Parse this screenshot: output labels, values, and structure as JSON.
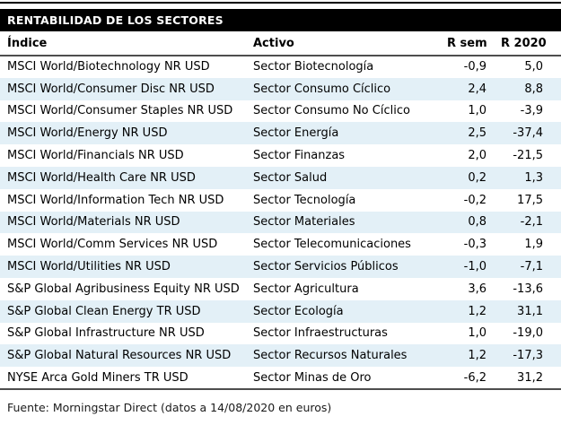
{
  "title": "RENTABILIDAD DE LOS SECTORES",
  "table": {
    "columns": [
      "Índice",
      "Activo",
      "R sem",
      "R 2020"
    ],
    "rows": [
      {
        "indice": "MSCI World/Biotechnology NR USD",
        "activo": "Sector Biotecnología",
        "r_sem": "-0,9",
        "r_2020": "5,0"
      },
      {
        "indice": "MSCI World/Consumer Disc NR USD",
        "activo": "Sector Consumo Cíclico",
        "r_sem": "2,4",
        "r_2020": "8,8"
      },
      {
        "indice": "MSCI World/Consumer Staples NR USD",
        "activo": "Sector Consumo No Cíclico",
        "r_sem": "1,0",
        "r_2020": "-3,9"
      },
      {
        "indice": "MSCI World/Energy NR USD",
        "activo": "Sector Energía",
        "r_sem": "2,5",
        "r_2020": "-37,4"
      },
      {
        "indice": "MSCI World/Financials NR USD",
        "activo": "Sector Finanzas",
        "r_sem": "2,0",
        "r_2020": "-21,5"
      },
      {
        "indice": "MSCI World/Health Care NR USD",
        "activo": "Sector Salud",
        "r_sem": "0,2",
        "r_2020": "1,3"
      },
      {
        "indice": "MSCI World/Information Tech NR USD",
        "activo": "Sector Tecnología",
        "r_sem": "-0,2",
        "r_2020": "17,5"
      },
      {
        "indice": "MSCI World/Materials NR USD",
        "activo": "Sector Materiales",
        "r_sem": "0,8",
        "r_2020": "-2,1"
      },
      {
        "indice": "MSCI World/Comm Services NR USD",
        "activo": "Sector Telecomunicaciones",
        "r_sem": "-0,3",
        "r_2020": "1,9"
      },
      {
        "indice": "MSCI World/Utilities NR USD",
        "activo": "Sector Servicios Públicos",
        "r_sem": "-1,0",
        "r_2020": "-7,1"
      },
      {
        "indice": "S&P Global Agribusiness Equity NR USD",
        "activo": "Sector Agricultura",
        "r_sem": "3,6",
        "r_2020": "-13,6"
      },
      {
        "indice": "S&P Global Clean Energy TR USD",
        "activo": "Sector Ecología",
        "r_sem": "1,2",
        "r_2020": "31,1"
      },
      {
        "indice": "S&P Global Infrastructure NR USD",
        "activo": "Sector Infraestructuras",
        "r_sem": "1,0",
        "r_2020": "-19,0"
      },
      {
        "indice": "S&P Global Natural Resources NR USD",
        "activo": "Sector Recursos Naturales",
        "r_sem": "1,2",
        "r_2020": "-17,3"
      },
      {
        "indice": "NYSE Arca Gold Miners TR USD",
        "activo": "Sector Minas de Oro",
        "r_sem": "-6,2",
        "r_2020": "31,2"
      }
    ]
  },
  "source": "Fuente: Morningstar Direct (datos a 14/08/2020 en euros)",
  "colors": {
    "title_bg": "#000000",
    "title_fg": "#ffffff",
    "row_alt_bg": "#e3f0f7",
    "rule": "#4d4d4d",
    "text": "#000000"
  }
}
